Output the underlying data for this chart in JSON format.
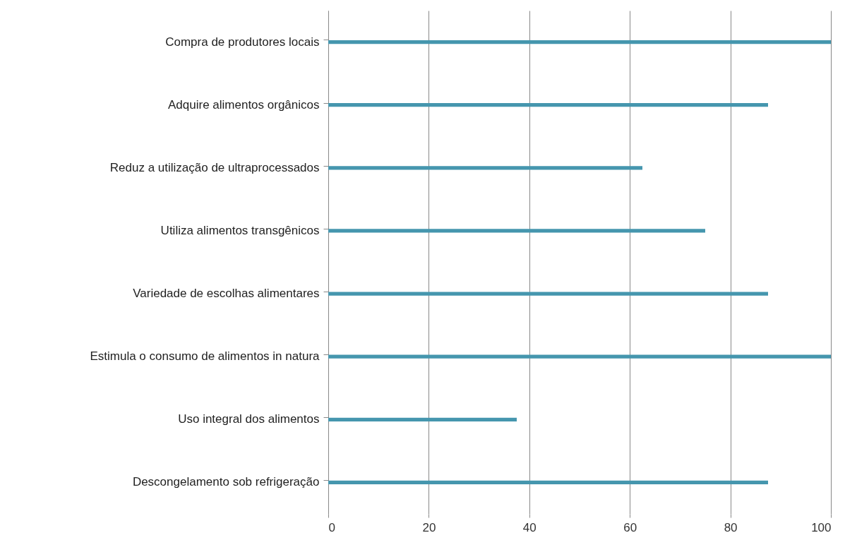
{
  "chart_data": {
    "type": "bar",
    "orientation": "horizontal",
    "categories": [
      "Compra de produtores locais",
      "Adquire alimentos orgânicos",
      "Reduz a utilização de ultraprocessados",
      "Utiliza alimentos transgênicos",
      "Variedade de escolhas alimentares",
      "Estimula o consumo de alimentos in natura",
      "Uso integral dos alimentos",
      "Descongelamento sob refrigeração"
    ],
    "values": [
      100,
      87.5,
      62.5,
      75,
      87.5,
      100,
      37.5,
      87.5
    ],
    "color": "#4596ae",
    "xlim": [
      0,
      100
    ],
    "xticks": [
      0,
      20,
      40,
      60,
      80,
      100
    ],
    "grid": "x"
  }
}
